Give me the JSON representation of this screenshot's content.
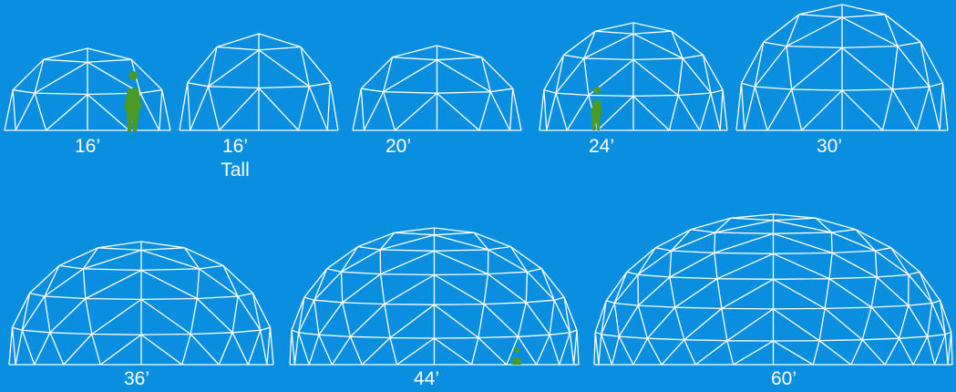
{
  "domes": [
    {
      "label": "16’"
    },
    {
      "label": "16’",
      "note": "Tall"
    },
    {
      "label": "20’"
    },
    {
      "label": "24’"
    },
    {
      "label": "30’"
    },
    {
      "label": "36’"
    },
    {
      "label": "44’"
    },
    {
      "label": "60’"
    }
  ]
}
